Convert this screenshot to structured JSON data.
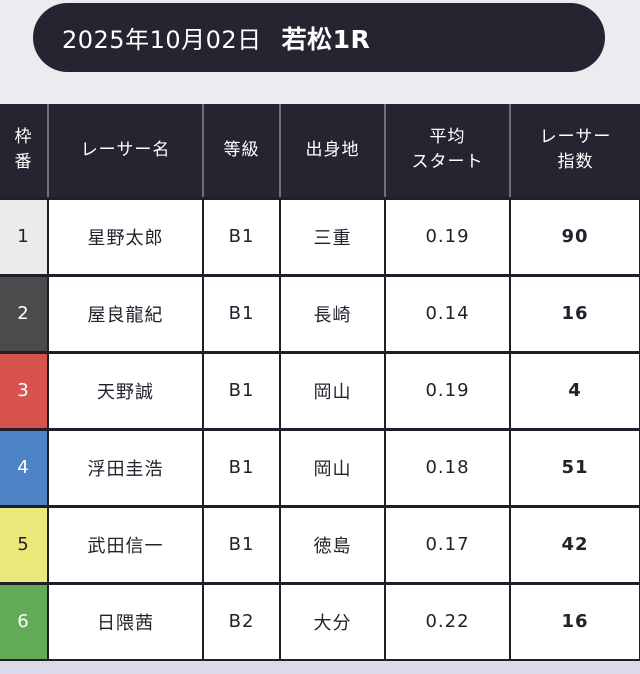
{
  "header": {
    "date": "2025年10月02日",
    "race": "若松1R"
  },
  "table": {
    "columns": [
      {
        "label": "枠\n番"
      },
      {
        "label": "レーサー名"
      },
      {
        "label": "等級"
      },
      {
        "label": "出身地"
      },
      {
        "label": "平均\nスタート"
      },
      {
        "label": "レーサー\n指数"
      }
    ],
    "rows": [
      {
        "frame": "1",
        "name": "星野太郎",
        "grade": "B1",
        "origin": "三重",
        "avg_start": "0.19",
        "index": "90",
        "frame_bg": "#ebebeb",
        "frame_color": "#23212b"
      },
      {
        "frame": "2",
        "name": "屋良龍紀",
        "grade": "B1",
        "origin": "長崎",
        "avg_start": "0.14",
        "index": "16",
        "frame_bg": "#4b4b4b",
        "frame_color": "#ffffff"
      },
      {
        "frame": "3",
        "name": "天野誠",
        "grade": "B1",
        "origin": "岡山",
        "avg_start": "0.19",
        "index": "4",
        "frame_bg": "#d8534d",
        "frame_color": "#ffffff"
      },
      {
        "frame": "4",
        "name": "浮田圭浩",
        "grade": "B1",
        "origin": "岡山",
        "avg_start": "0.18",
        "index": "51",
        "frame_bg": "#4d84c6",
        "frame_color": "#ffffff"
      },
      {
        "frame": "5",
        "name": "武田信一",
        "grade": "B1",
        "origin": "徳島",
        "avg_start": "0.17",
        "index": "42",
        "frame_bg": "#e9e878",
        "frame_color": "#23212b"
      },
      {
        "frame": "6",
        "name": "日隈茜",
        "grade": "B2",
        "origin": "大分",
        "avg_start": "0.22",
        "index": "16",
        "frame_bg": "#63ab58",
        "frame_color": "#ffffff"
      }
    ]
  },
  "colors": {
    "page_background": "#ecebf0",
    "header_pill": "#262430",
    "table_header": "#262430",
    "cell_border": "#201e28",
    "header_separator": "#6f6e79",
    "footer_strip": "#dbdaeb"
  }
}
